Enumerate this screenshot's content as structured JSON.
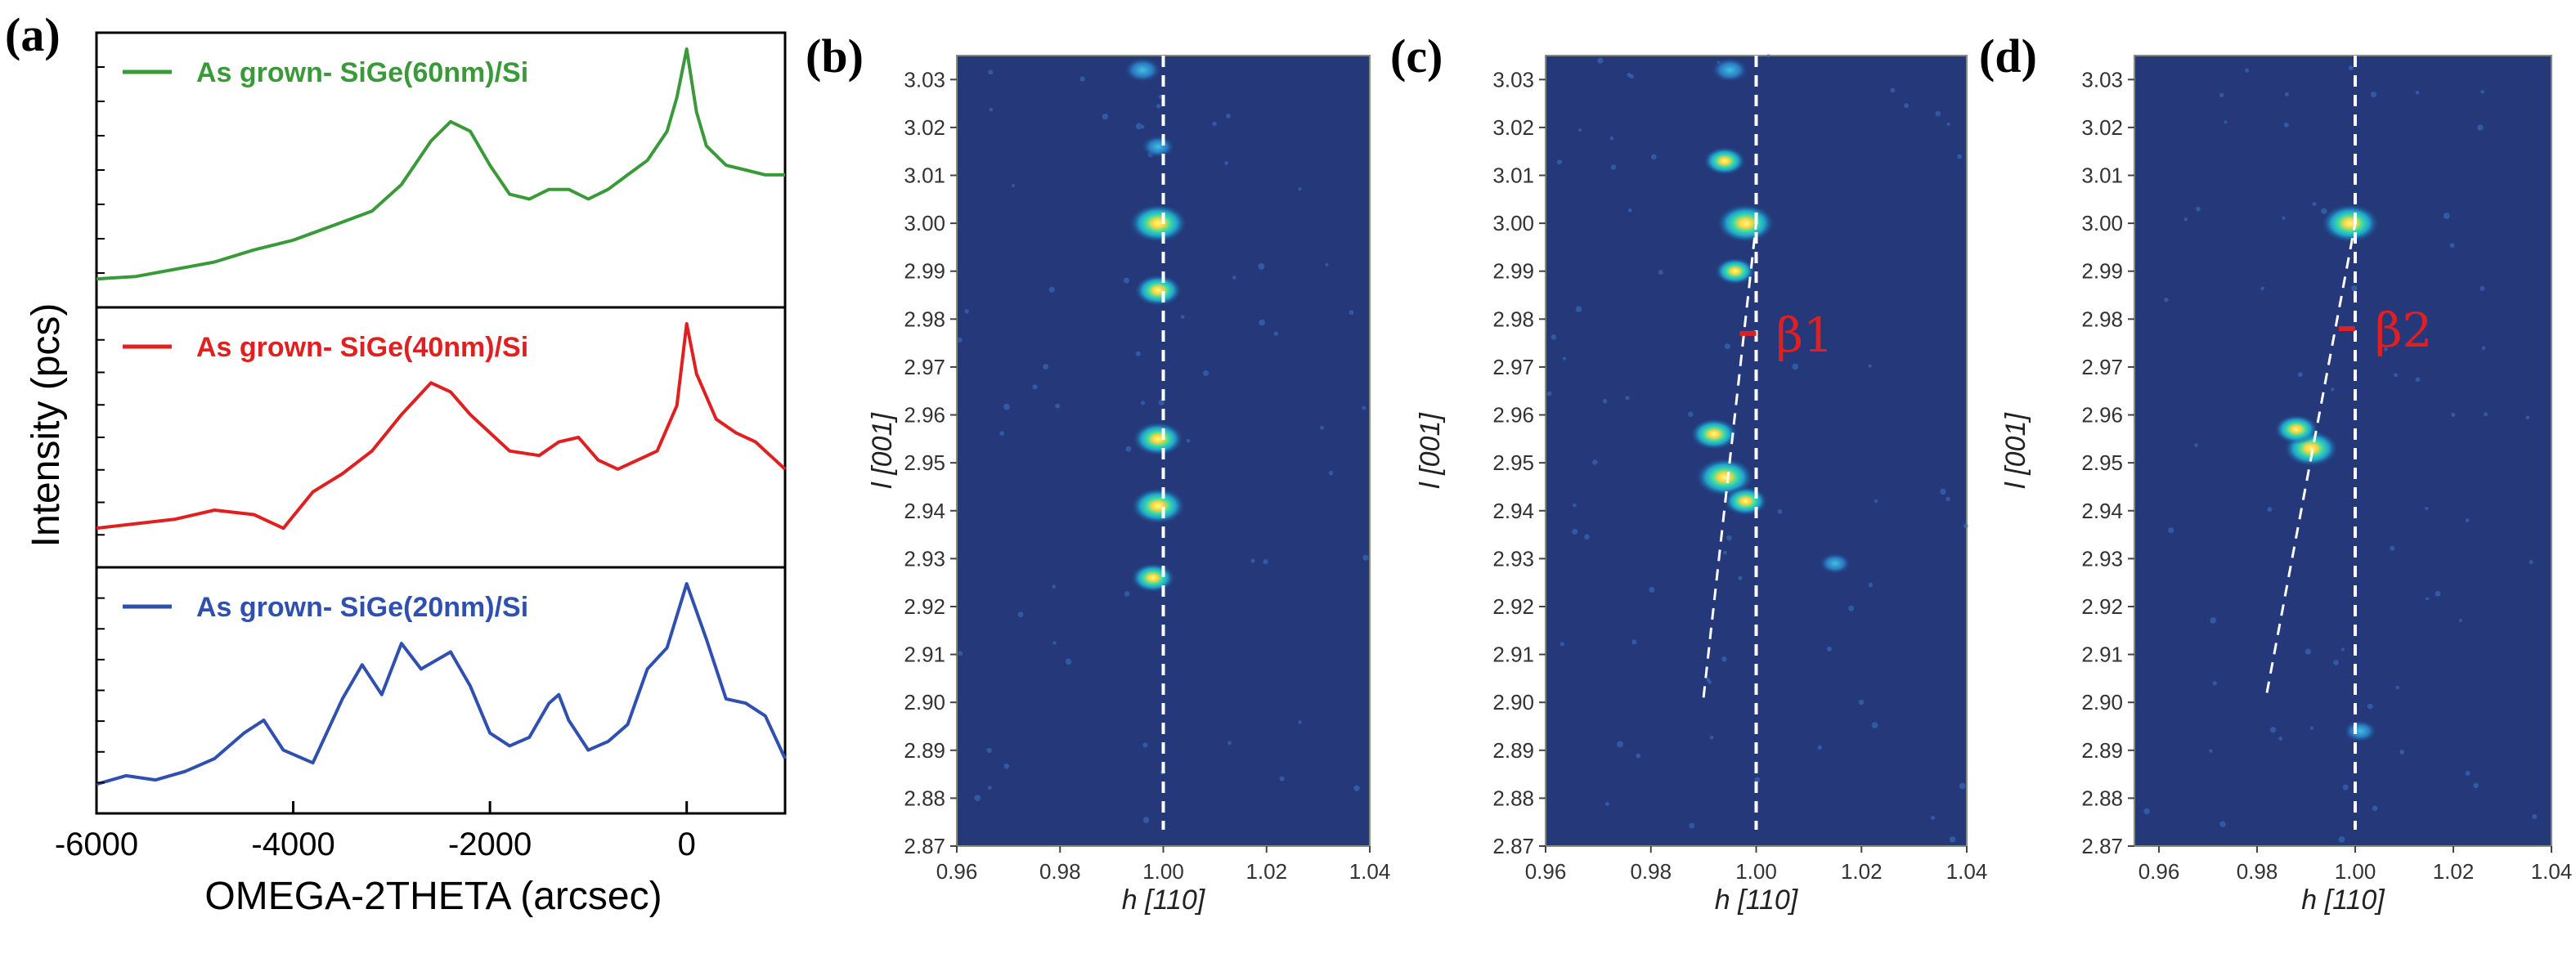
{
  "figure": {
    "panel_labels": [
      "(a)",
      "(b)",
      "(c)",
      "(d)"
    ]
  },
  "chart_data": [
    {
      "type": "line",
      "panel": "(a)",
      "xlabel": "OMEGA-2THETA (arcsec)",
      "ylabel": "Intensity (pcs)",
      "xlim": [
        -6000,
        1000
      ],
      "xticks": [
        "-6000",
        "-4000",
        "-2000",
        "0"
      ],
      "log_scale_y": true,
      "series": [
        {
          "name": "As grown- SiGe(60nm)/Si",
          "color": "#3a9a3a",
          "x": [
            -6000,
            -5600,
            -5200,
            -4800,
            -4400,
            -4000,
            -3600,
            -3200,
            -2900,
            -2600,
            -2400,
            -2200,
            -2000,
            -1800,
            -1600,
            -1400,
            -1200,
            -1000,
            -800,
            -600,
            -400,
            -200,
            -100,
            0,
            100,
            200,
            400,
            600,
            800,
            1000
          ],
          "y": [
            0.05,
            0.06,
            0.09,
            0.12,
            0.17,
            0.21,
            0.27,
            0.33,
            0.44,
            0.62,
            0.7,
            0.66,
            0.52,
            0.4,
            0.38,
            0.42,
            0.42,
            0.38,
            0.42,
            0.48,
            0.54,
            0.66,
            0.8,
            1.0,
            0.74,
            0.6,
            0.52,
            0.5,
            0.48,
            0.48
          ]
        },
        {
          "name": "As grown- SiGe(40nm)/Si",
          "color": "#e02020",
          "x": [
            -6000,
            -5600,
            -5200,
            -4800,
            -4400,
            -4100,
            -3800,
            -3500,
            -3200,
            -2900,
            -2600,
            -2400,
            -2200,
            -2000,
            -1800,
            -1500,
            -1300,
            -1100,
            -900,
            -700,
            -500,
            -300,
            -100,
            0,
            100,
            300,
            500,
            700,
            900,
            1000
          ],
          "y": [
            0.1,
            0.12,
            0.14,
            0.18,
            0.16,
            0.1,
            0.26,
            0.34,
            0.44,
            0.6,
            0.74,
            0.7,
            0.6,
            0.52,
            0.44,
            0.42,
            0.48,
            0.5,
            0.4,
            0.36,
            0.4,
            0.44,
            0.64,
            1.0,
            0.78,
            0.58,
            0.52,
            0.48,
            0.4,
            0.36
          ]
        },
        {
          "name": "As grown- SiGe(20nm)/Si",
          "color": "#3050b0",
          "x": [
            -6000,
            -5700,
            -5400,
            -5100,
            -4800,
            -4500,
            -4300,
            -4100,
            -3800,
            -3500,
            -3300,
            -3100,
            -2900,
            -2700,
            -2400,
            -2200,
            -2000,
            -1800,
            -1600,
            -1400,
            -1300,
            -1200,
            -1000,
            -800,
            -600,
            -400,
            -200,
            0,
            200,
            400,
            600,
            800,
            1000
          ],
          "y": [
            0.06,
            0.1,
            0.08,
            0.12,
            0.18,
            0.3,
            0.36,
            0.22,
            0.16,
            0.46,
            0.62,
            0.48,
            0.72,
            0.6,
            0.68,
            0.52,
            0.3,
            0.24,
            0.28,
            0.44,
            0.48,
            0.36,
            0.22,
            0.26,
            0.34,
            0.6,
            0.7,
            1.0,
            0.74,
            0.46,
            0.44,
            0.38,
            0.18
          ]
        }
      ]
    },
    {
      "type": "heatmap",
      "panel": "(b)",
      "xlabel": "h [110]",
      "ylabel": "l [001]",
      "xlim": [
        0.96,
        1.04
      ],
      "ylim": [
        2.87,
        3.035
      ],
      "xticks": [
        "0.96",
        "0.98",
        "1.00",
        "1.02",
        "1.04"
      ],
      "yticks": [
        "2.87",
        "2.88",
        "2.89",
        "2.90",
        "2.91",
        "2.92",
        "2.93",
        "2.94",
        "2.95",
        "2.96",
        "2.97",
        "2.98",
        "2.99",
        "3.00",
        "3.01",
        "3.02",
        "3.03"
      ],
      "reference_line_h": 1.0,
      "spots": [
        {
          "h": 0.996,
          "l": 3.032,
          "intensity": 0.4
        },
        {
          "h": 0.999,
          "l": 3.016,
          "intensity": 0.3
        },
        {
          "h": 0.999,
          "l": 3.0,
          "intensity": 1.0
        },
        {
          "h": 0.999,
          "l": 2.986,
          "intensity": 0.7
        },
        {
          "h": 0.999,
          "l": 2.955,
          "intensity": 0.8
        },
        {
          "h": 0.999,
          "l": 2.941,
          "intensity": 0.9
        },
        {
          "h": 0.998,
          "l": 2.926,
          "intensity": 0.6
        }
      ]
    },
    {
      "type": "heatmap",
      "panel": "(c)",
      "xlabel": "h [110]",
      "ylabel": "l [001]",
      "xlim": [
        0.96,
        1.04
      ],
      "ylim": [
        2.87,
        3.035
      ],
      "xticks": [
        "0.96",
        "0.98",
        "1.00",
        "1.02",
        "1.04"
      ],
      "yticks": [
        "2.87",
        "2.88",
        "2.89",
        "2.90",
        "2.91",
        "2.92",
        "2.93",
        "2.94",
        "2.95",
        "2.96",
        "2.97",
        "2.98",
        "2.99",
        "3.00",
        "3.01",
        "3.02",
        "3.03"
      ],
      "reference_line_h": 1.0,
      "tilt_line": {
        "h_from": 0.99,
        "l_from": 2.901,
        "h_to": 1.0,
        "l_to": 3.0
      },
      "annotation": "β1",
      "annotation_h": 1.0,
      "annotation_l": 2.977,
      "spots": [
        {
          "h": 0.995,
          "l": 3.032,
          "intensity": 0.4
        },
        {
          "h": 0.994,
          "l": 3.013,
          "intensity": 0.55
        },
        {
          "h": 0.998,
          "l": 3.0,
          "intensity": 1.0
        },
        {
          "h": 0.996,
          "l": 2.99,
          "intensity": 0.5
        },
        {
          "h": 0.994,
          "l": 2.947,
          "intensity": 1.0
        },
        {
          "h": 0.992,
          "l": 2.956,
          "intensity": 0.7
        },
        {
          "h": 0.998,
          "l": 2.942,
          "intensity": 0.6
        },
        {
          "h": 1.015,
          "l": 2.929,
          "intensity": 0.25
        }
      ]
    },
    {
      "type": "heatmap",
      "panel": "(d)",
      "xlabel": "h [110]",
      "ylabel": "l [001]",
      "xlim": [
        0.955,
        1.04
      ],
      "ylim": [
        2.87,
        3.035
      ],
      "xticks": [
        "0.96",
        "0.98",
        "1.00",
        "1.02",
        "1.04"
      ],
      "yticks": [
        "2.87",
        "2.88",
        "2.89",
        "2.90",
        "2.91",
        "2.92",
        "2.93",
        "2.94",
        "2.95",
        "2.96",
        "2.97",
        "2.98",
        "2.99",
        "3.00",
        "3.01",
        "3.02",
        "3.03"
      ],
      "reference_line_h": 1.0,
      "tilt_line": {
        "h_from": 0.982,
        "l_from": 2.902,
        "h_to": 1.0,
        "l_to": 3.0
      },
      "annotation": "β2",
      "annotation_h": 1.0,
      "annotation_l": 2.978,
      "spots": [
        {
          "h": 0.999,
          "l": 3.0,
          "intensity": 1.0
        },
        {
          "h": 0.991,
          "l": 2.953,
          "intensity": 0.9
        },
        {
          "h": 0.988,
          "l": 2.957,
          "intensity": 0.6
        },
        {
          "h": 1.001,
          "l": 2.894,
          "intensity": 0.3
        }
      ]
    }
  ]
}
